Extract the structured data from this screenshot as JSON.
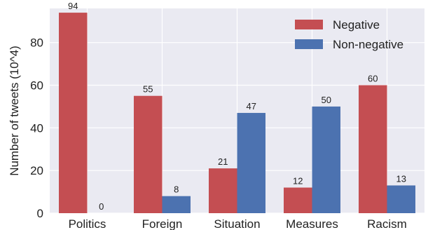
{
  "chart_data": {
    "type": "bar",
    "categories": [
      "Politics",
      "Foreign",
      "Situation",
      "Measures",
      "Racism"
    ],
    "series": [
      {
        "name": "Negative",
        "values": [
          94,
          55,
          21,
          12,
          60
        ],
        "color": "#c44e52"
      },
      {
        "name": "Non-negative",
        "values": [
          0,
          8,
          47,
          50,
          13
        ],
        "color": "#4c72b0"
      }
    ],
    "ylabel": "Number of tweets (10^4)",
    "xlabel": "",
    "ylim": [
      0,
      96
    ],
    "yticks": [
      0,
      20,
      40,
      60,
      80
    ],
    "grid": true,
    "legend_position": "top-right",
    "background": "#eaeaf2"
  }
}
